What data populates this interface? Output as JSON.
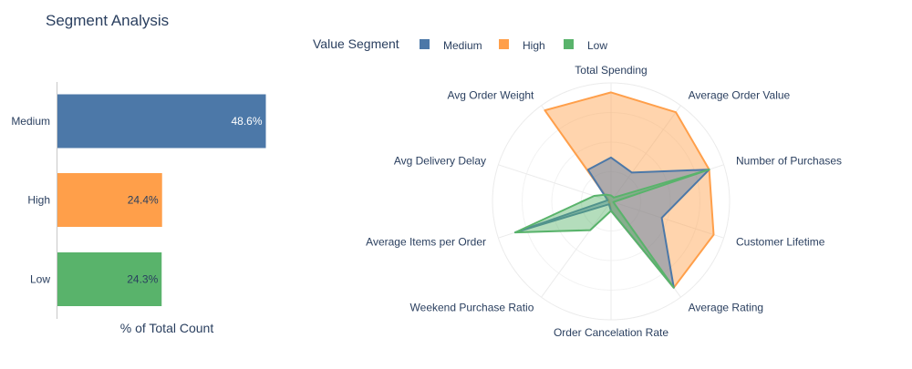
{
  "title": "Segment Analysis",
  "legend": {
    "title": "Value Segment",
    "items": [
      {
        "name": "Medium",
        "color": "#4c78a8"
      },
      {
        "name": "High",
        "color": "#ff9f4a"
      },
      {
        "name": "Low",
        "color": "#59b36b"
      }
    ]
  },
  "chart_data": [
    {
      "type": "bar",
      "orientation": "horizontal",
      "categories": [
        "Medium",
        "High",
        "Low"
      ],
      "values": [
        48.6,
        24.4,
        24.3
      ],
      "data_labels": [
        "48.6%",
        "24.4%",
        "24.3%"
      ],
      "colors": [
        "#4c78a8",
        "#ff9f4a",
        "#59b36b"
      ],
      "xlabel": "% of Total Count",
      "xlim": [
        0,
        50
      ]
    },
    {
      "type": "radar",
      "axes": [
        "Total Spending",
        "Average Order Value",
        "Number of Purchases",
        "Customer Lifetime",
        "Average Rating",
        "Order Cancelation Rate",
        "Weekend Purchase Ratio",
        "Average Items per Order",
        "Avg Delivery Delay",
        "Avg Order Weight"
      ],
      "range": [
        0,
        1
      ],
      "series": [
        {
          "name": "High",
          "color": "#ff9f4a",
          "values": [
            0.92,
            0.93,
            0.87,
            0.91,
            0.9,
            0.08,
            0.02,
            0.02,
            0.02,
            0.95
          ]
        },
        {
          "name": "Medium",
          "color": "#4c78a8",
          "values": [
            0.37,
            0.3,
            0.87,
            0.45,
            0.9,
            0.08,
            0.03,
            0.85,
            0.03,
            0.33
          ]
        },
        {
          "name": "Low",
          "color": "#59b36b",
          "values": [
            0.05,
            0.04,
            0.87,
            0.02,
            0.9,
            0.08,
            0.3,
            0.85,
            0.15,
            0.07
          ]
        }
      ]
    }
  ]
}
